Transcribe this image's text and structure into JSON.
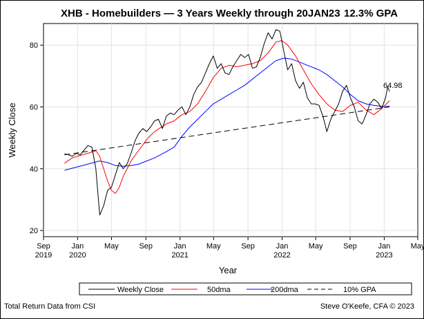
{
  "chart_data": {
    "type": "line",
    "title": "XHB - Homebuilders — 3 Years Weekly through 20JAN23",
    "subtitle": "12.3% GPA",
    "xlabel": "Year",
    "ylabel": "Weekly Close",
    "ylim": [
      18,
      87
    ],
    "xlim": [
      "2019-09-01",
      "2023-05-01"
    ],
    "y_ticks": [
      20,
      40,
      60,
      80
    ],
    "x_ticks": [
      {
        "date": "2019-09-01",
        "label": "Sep",
        "year": "2019"
      },
      {
        "date": "2020-01-01",
        "label": "Jan",
        "year": "2020"
      },
      {
        "date": "2020-05-01",
        "label": "May",
        "year": ""
      },
      {
        "date": "2020-09-01",
        "label": "Sep",
        "year": ""
      },
      {
        "date": "2021-01-01",
        "label": "Jan",
        "year": "2021"
      },
      {
        "date": "2021-05-01",
        "label": "May",
        "year": ""
      },
      {
        "date": "2021-09-01",
        "label": "Sep",
        "year": ""
      },
      {
        "date": "2022-01-01",
        "label": "Jan",
        "year": "2022"
      },
      {
        "date": "2022-05-01",
        "label": "May",
        "year": ""
      },
      {
        "date": "2022-09-01",
        "label": "Sep",
        "year": ""
      },
      {
        "date": "2023-01-01",
        "label": "Jan",
        "year": "2023"
      },
      {
        "date": "2023-05-01",
        "label": "May",
        "year": ""
      }
    ],
    "grid": true,
    "legend_position": "bottom",
    "last_value_label": "64.98",
    "series": [
      {
        "name": "Weekly Close",
        "color": "#000000",
        "dash": "",
        "points": [
          [
            "2019-11-15",
            44.8
          ],
          [
            "2019-11-29",
            44.5
          ],
          [
            "2019-12-13",
            44.0
          ],
          [
            "2019-12-27",
            45.0
          ],
          [
            "2020-01-10",
            44.5
          ],
          [
            "2020-01-24",
            46.0
          ],
          [
            "2020-02-07",
            47.5
          ],
          [
            "2020-02-21",
            47.0
          ],
          [
            "2020-03-06",
            40.0
          ],
          [
            "2020-03-20",
            25.0
          ],
          [
            "2020-04-03",
            28.0
          ],
          [
            "2020-04-17",
            33.0
          ],
          [
            "2020-05-01",
            34.0
          ],
          [
            "2020-05-15",
            38.0
          ],
          [
            "2020-05-29",
            42.0
          ],
          [
            "2020-06-12",
            40.0
          ],
          [
            "2020-06-26",
            41.5
          ],
          [
            "2020-07-10",
            45.0
          ],
          [
            "2020-07-24",
            49.0
          ],
          [
            "2020-08-07",
            51.5
          ],
          [
            "2020-08-21",
            53.0
          ],
          [
            "2020-09-04",
            52.0
          ],
          [
            "2020-09-18",
            53.5
          ],
          [
            "2020-10-02",
            55.5
          ],
          [
            "2020-10-16",
            56.0
          ],
          [
            "2020-10-30",
            53.0
          ],
          [
            "2020-11-13",
            57.0
          ],
          [
            "2020-11-27",
            58.0
          ],
          [
            "2020-12-11",
            57.5
          ],
          [
            "2020-12-25",
            59.0
          ],
          [
            "2021-01-08",
            60.0
          ],
          [
            "2021-01-22",
            57.5
          ],
          [
            "2021-02-05",
            60.0
          ],
          [
            "2021-02-19",
            64.0
          ],
          [
            "2021-03-05",
            66.5
          ],
          [
            "2021-03-19",
            68.0
          ],
          [
            "2021-04-02",
            71.0
          ],
          [
            "2021-04-16",
            74.0
          ],
          [
            "2021-04-30",
            76.5
          ],
          [
            "2021-05-14",
            72.5
          ],
          [
            "2021-05-28",
            74.0
          ],
          [
            "2021-06-11",
            71.0
          ],
          [
            "2021-06-25",
            70.5
          ],
          [
            "2021-07-09",
            73.0
          ],
          [
            "2021-07-23",
            75.0
          ],
          [
            "2021-08-06",
            77.0
          ],
          [
            "2021-08-20",
            76.0
          ],
          [
            "2021-09-03",
            77.0
          ],
          [
            "2021-09-17",
            72.5
          ],
          [
            "2021-10-01",
            73.0
          ],
          [
            "2021-10-15",
            76.0
          ],
          [
            "2021-10-29",
            80.5
          ],
          [
            "2021-11-12",
            84.0
          ],
          [
            "2021-11-26",
            82.0
          ],
          [
            "2021-12-10",
            85.0
          ],
          [
            "2021-12-24",
            84.5
          ],
          [
            "2022-01-07",
            78.0
          ],
          [
            "2022-01-21",
            72.0
          ],
          [
            "2022-02-04",
            74.0
          ],
          [
            "2022-02-18",
            68.5
          ],
          [
            "2022-03-04",
            66.0
          ],
          [
            "2022-03-18",
            68.0
          ],
          [
            "2022-04-01",
            63.0
          ],
          [
            "2022-04-15",
            61.0
          ],
          [
            "2022-04-29",
            61.0
          ],
          [
            "2022-05-13",
            60.5
          ],
          [
            "2022-05-27",
            57.0
          ],
          [
            "2022-06-10",
            52.0
          ],
          [
            "2022-06-24",
            56.0
          ],
          [
            "2022-07-08",
            58.5
          ],
          [
            "2022-07-22",
            61.0
          ],
          [
            "2022-08-05",
            65.0
          ],
          [
            "2022-08-19",
            67.0
          ],
          [
            "2022-09-02",
            63.0
          ],
          [
            "2022-09-16",
            60.0
          ],
          [
            "2022-09-30",
            55.5
          ],
          [
            "2022-10-14",
            54.5
          ],
          [
            "2022-10-28",
            57.5
          ],
          [
            "2022-11-11",
            61.0
          ],
          [
            "2022-11-25",
            62.5
          ],
          [
            "2022-12-09",
            61.5
          ],
          [
            "2022-12-23",
            59.5
          ],
          [
            "2023-01-06",
            63.0
          ],
          [
            "2023-01-13",
            66.5
          ],
          [
            "2023-01-20",
            64.98
          ]
        ]
      },
      {
        "name": "50dma",
        "color": "#ff0000",
        "dash": "",
        "points": [
          [
            "2019-11-15",
            41.8
          ],
          [
            "2019-12-13",
            43.5
          ],
          [
            "2020-01-10",
            44.3
          ],
          [
            "2020-02-07",
            45.0
          ],
          [
            "2020-03-06",
            45.8
          ],
          [
            "2020-03-20",
            44.0
          ],
          [
            "2020-04-03",
            40.0
          ],
          [
            "2020-04-17",
            36.0
          ],
          [
            "2020-05-01",
            33.0
          ],
          [
            "2020-05-15",
            32.0
          ],
          [
            "2020-05-29",
            34.0
          ],
          [
            "2020-06-12",
            37.5
          ],
          [
            "2020-07-10",
            42.5
          ],
          [
            "2020-08-07",
            46.0
          ],
          [
            "2020-09-04",
            49.5
          ],
          [
            "2020-10-02",
            52.0
          ],
          [
            "2020-11-13",
            54.5
          ],
          [
            "2020-12-11",
            55.5
          ],
          [
            "2021-01-08",
            57.5
          ],
          [
            "2021-02-05",
            58.5
          ],
          [
            "2021-03-05",
            61.0
          ],
          [
            "2021-04-02",
            65.0
          ],
          [
            "2021-04-30",
            69.5
          ],
          [
            "2021-05-28",
            72.5
          ],
          [
            "2021-06-25",
            73.5
          ],
          [
            "2021-07-23",
            73.0
          ],
          [
            "2021-08-20",
            73.5
          ],
          [
            "2021-09-17",
            74.0
          ],
          [
            "2021-10-15",
            75.0
          ],
          [
            "2021-11-12",
            77.5
          ],
          [
            "2021-12-10",
            81.0
          ],
          [
            "2021-12-31",
            81.5
          ],
          [
            "2022-01-21",
            80.0
          ],
          [
            "2022-02-18",
            76.5
          ],
          [
            "2022-03-18",
            72.0
          ],
          [
            "2022-04-15",
            67.5
          ],
          [
            "2022-05-13",
            64.0
          ],
          [
            "2022-06-10",
            61.0
          ],
          [
            "2022-07-08",
            59.0
          ],
          [
            "2022-08-05",
            58.5
          ],
          [
            "2022-09-02",
            60.5
          ],
          [
            "2022-09-30",
            61.5
          ],
          [
            "2022-10-28",
            59.0
          ],
          [
            "2022-11-25",
            57.5
          ],
          [
            "2022-12-23",
            59.5
          ],
          [
            "2023-01-20",
            62.0
          ]
        ]
      },
      {
        "name": "200dma",
        "color": "#0000ff",
        "dash": "",
        "points": [
          [
            "2019-11-15",
            39.5
          ],
          [
            "2019-12-27",
            40.5
          ],
          [
            "2020-02-07",
            41.5
          ],
          [
            "2020-03-20",
            42.5
          ],
          [
            "2020-04-17",
            42.0
          ],
          [
            "2020-05-15",
            41.0
          ],
          [
            "2020-06-12",
            40.8
          ],
          [
            "2020-07-10",
            41.0
          ],
          [
            "2020-08-07",
            41.5
          ],
          [
            "2020-09-04",
            42.5
          ],
          [
            "2020-10-02",
            43.5
          ],
          [
            "2020-11-13",
            45.5
          ],
          [
            "2020-12-11",
            47.0
          ],
          [
            "2021-01-08",
            50.5
          ],
          [
            "2021-02-05",
            53.5
          ],
          [
            "2021-03-05",
            56.0
          ],
          [
            "2021-04-02",
            58.5
          ],
          [
            "2021-04-30",
            61.0
          ],
          [
            "2021-05-28",
            62.5
          ],
          [
            "2021-06-25",
            64.0
          ],
          [
            "2021-07-23",
            65.5
          ],
          [
            "2021-08-20",
            67.0
          ],
          [
            "2021-09-17",
            69.0
          ],
          [
            "2021-10-15",
            71.0
          ],
          [
            "2021-11-12",
            73.0
          ],
          [
            "2021-12-10",
            75.0
          ],
          [
            "2022-01-07",
            75.8
          ],
          [
            "2022-02-04",
            75.5
          ],
          [
            "2022-03-04",
            74.5
          ],
          [
            "2022-04-01",
            73.5
          ],
          [
            "2022-05-13",
            72.0
          ],
          [
            "2022-06-10",
            70.5
          ],
          [
            "2022-07-08",
            68.5
          ],
          [
            "2022-08-05",
            66.5
          ],
          [
            "2022-09-02",
            64.0
          ],
          [
            "2022-09-30",
            62.0
          ],
          [
            "2022-10-28",
            61.0
          ],
          [
            "2022-11-25",
            60.5
          ],
          [
            "2022-12-23",
            60.2
          ],
          [
            "2023-01-20",
            60.2
          ]
        ]
      },
      {
        "name": "10% GPA",
        "color": "#000000",
        "dash": "8,5",
        "points": [
          [
            "2019-11-15",
            44.5
          ],
          [
            "2023-01-20",
            60.0
          ]
        ]
      }
    ]
  },
  "footer": {
    "left": "Total Return Data from CSI",
    "right": "Steve O'Keefe, CFA © 2023"
  }
}
